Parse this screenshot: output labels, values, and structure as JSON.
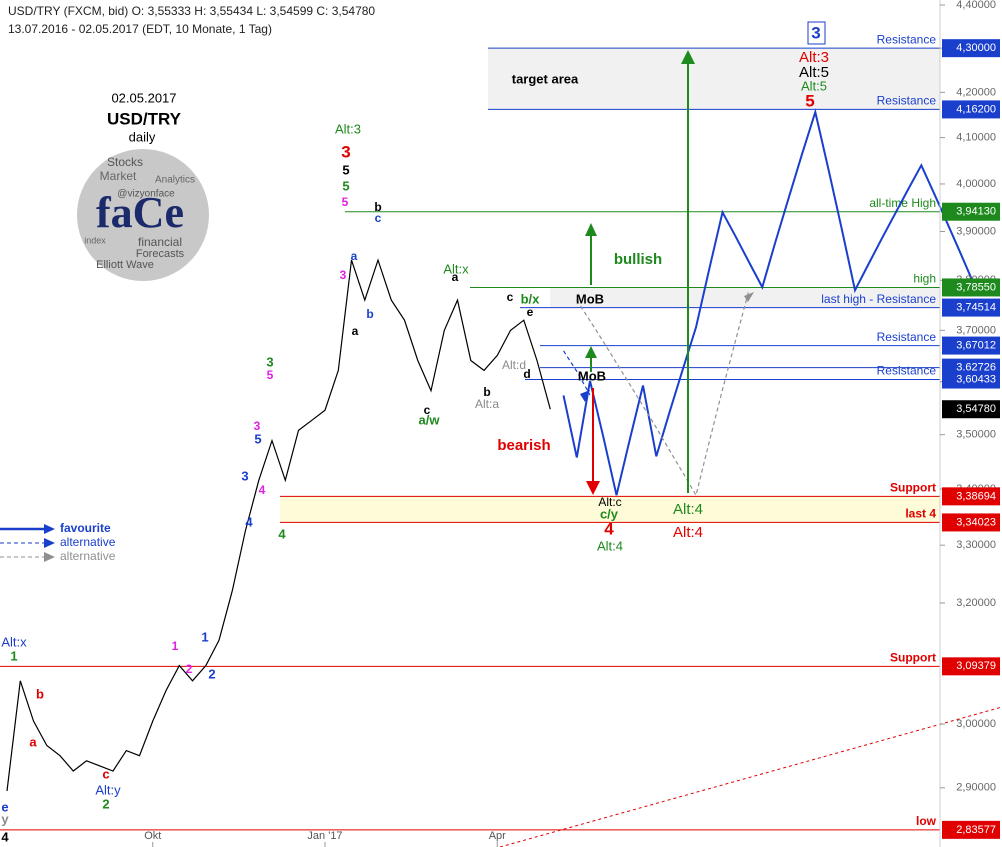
{
  "header": {
    "line1": "USD/TRY (FXCM, bid)  O: 3,55333  H: 3,55434  L: 3,54599  C: 3,54780",
    "line2": "13.07.2016 - 02.05.2017  (EDT, 10 Monate, 1 Tag)"
  },
  "logo": {
    "date": "02.05.2017",
    "symbol": "USD/TRY",
    "period": "daily",
    "brand": "faCe",
    "words": [
      "Stocks",
      "Market",
      "financial",
      "Forecasts",
      "Elliott Wave",
      "@vizyonface",
      "index",
      "Analytics"
    ]
  },
  "chart_data": {
    "type": "line",
    "log_scale": true,
    "categories": [
      null,
      null,
      null,
      null,
      null,
      null,
      null,
      null,
      null,
      null,
      null,
      "Okt",
      null,
      null,
      null,
      null,
      null,
      null,
      null,
      null,
      null,
      null,
      null,
      null,
      "Jan '17",
      null,
      null,
      null,
      null,
      null,
      null,
      null,
      null,
      null,
      null,
      null,
      null,
      "Apr",
      null,
      null,
      null,
      null,
      null,
      null,
      null,
      null,
      null,
      null,
      null,
      null,
      null,
      null,
      null,
      null,
      null,
      null,
      null,
      null,
      null,
      null,
      null,
      null,
      null,
      null,
      null,
      null,
      null,
      null,
      null,
      null,
      null,
      null,
      null,
      null
    ],
    "ylim": [
      2.81,
      4.4
    ],
    "yticks": [
      {
        "value": 4.4,
        "label": "4,40000"
      },
      {
        "value": 4.3,
        "label": "4,30000"
      },
      {
        "value": 4.2,
        "label": "4,20000"
      },
      {
        "value": 4.1,
        "label": "4,10000"
      },
      {
        "value": 4.0,
        "label": "4,00000"
      },
      {
        "value": 3.9,
        "label": "3,90000"
      },
      {
        "value": 3.8,
        "label": "3,80000"
      },
      {
        "value": 3.7,
        "label": "3,70000"
      },
      {
        "value": 3.6,
        "label": "3,60000"
      },
      {
        "value": 3.5,
        "label": "3,50000"
      },
      {
        "value": 3.4,
        "label": "3,40000"
      },
      {
        "value": 3.3,
        "label": "3,30000"
      },
      {
        "value": 3.2,
        "label": "3,20000"
      },
      {
        "value": 3.0,
        "label": "3,00000"
      },
      {
        "value": 2.9,
        "label": "2,90000"
      }
    ],
    "series": [
      {
        "name": "USD/TRY",
        "color": "#000000",
        "dash": false,
        "values": [
          2.895,
          3.07,
          3.005,
          2.966,
          2.95,
          2.926,
          2.942,
          2.934,
          2.926,
          2.958,
          2.95,
          3.005,
          3.054,
          3.095,
          3.07,
          3.095,
          3.137,
          3.221,
          3.326,
          3.416,
          3.489,
          3.416,
          3.508,
          3.527,
          3.546,
          3.622,
          3.841,
          3.76,
          3.841,
          3.76,
          3.72,
          3.641,
          3.583,
          3.7,
          3.76,
          3.641,
          3.622,
          3.651,
          3.7,
          3.72,
          3.641,
          3.5478,
          null,
          null,
          null,
          null,
          null,
          null,
          null,
          null,
          null,
          null,
          null,
          null,
          null,
          null,
          null,
          null,
          null,
          null,
          null,
          null,
          null,
          null,
          null,
          null,
          null,
          null,
          null,
          null,
          null,
          null,
          null,
          null
        ]
      },
      {
        "name": "favourite",
        "color": "#1a3fcc",
        "dash": false,
        "values": [
          null,
          null,
          null,
          null,
          null,
          null,
          null,
          null,
          null,
          null,
          null,
          null,
          null,
          null,
          null,
          null,
          null,
          null,
          null,
          null,
          null,
          null,
          null,
          null,
          null,
          null,
          null,
          null,
          null,
          null,
          null,
          null,
          null,
          null,
          null,
          null,
          null,
          null,
          null,
          null,
          null,
          null,
          3.574,
          3.458,
          3.602,
          3.496,
          3.389,
          3.491,
          3.593,
          3.46,
          3.542,
          3.624,
          3.706,
          3.823,
          3.94,
          3.889,
          3.837,
          3.786,
          3.879,
          3.971,
          4.064,
          4.156,
          4.031,
          3.905,
          3.78,
          3.832,
          3.884,
          3.936,
          3.988,
          4.04,
          3.978,
          3.915,
          3.853,
          3.79
        ]
      },
      {
        "name": "alternative",
        "color": "#1a3fcc",
        "dash": true,
        "values": [
          null,
          null,
          null,
          null,
          null,
          null,
          null,
          null,
          null,
          null,
          null,
          null,
          null,
          null,
          null,
          null,
          null,
          null,
          null,
          null,
          null,
          null,
          null,
          null,
          null,
          null,
          null,
          null,
          null,
          null,
          null,
          null,
          null,
          null,
          null,
          null,
          null,
          null,
          null,
          null,
          null,
          null,
          3.66,
          3.62,
          3.575,
          null,
          null,
          null,
          null,
          null,
          null,
          null,
          null,
          null,
          null,
          null,
          null,
          null,
          null,
          null,
          null,
          null,
          null,
          null,
          null,
          null,
          null,
          null,
          null,
          null,
          null,
          null,
          null,
          null
        ]
      },
      {
        "name": "alternative",
        "color": "#909090",
        "dash": true,
        "values": [
          null,
          null,
          null,
          null,
          null,
          null,
          null,
          null,
          null,
          null,
          null,
          null,
          null,
          null,
          null,
          null,
          null,
          null,
          null,
          null,
          null,
          null,
          null,
          null,
          null,
          null,
          null,
          null,
          null,
          null,
          null,
          null,
          null,
          null,
          null,
          null,
          null,
          null,
          null,
          null,
          null,
          null,
          null,
          3.76,
          3.719,
          3.678,
          3.636,
          3.595,
          3.554,
          3.513,
          3.471,
          3.43,
          3.389,
          3.487,
          3.585,
          3.682,
          3.78,
          null,
          null,
          null,
          null,
          null,
          null,
          null,
          null,
          null,
          null,
          null,
          null,
          null,
          null,
          null,
          null,
          null
        ]
      }
    ],
    "levels": [
      {
        "value": 4.3,
        "label": "4,30000",
        "text": "Resistance",
        "color": "#1a3fcc"
      },
      {
        "value": 4.162,
        "label": "4,16200",
        "text": "Resistance",
        "color": "#1a3fcc"
      },
      {
        "value": 3.9413,
        "label": "3,94130",
        "text": "all-time High",
        "color": "#1e8a1e"
      },
      {
        "value": 3.7855,
        "label": "3,78550",
        "text": "high",
        "color": "#1e8a1e"
      },
      {
        "value": 3.74514,
        "label": "3,74514",
        "text": "last high - Resistance",
        "color": "#1a3fcc"
      },
      {
        "value": 3.67012,
        "label": "3,67012",
        "text": "Resistance",
        "color": "#1a3fcc"
      },
      {
        "value": 3.62726,
        "label": "3,62726",
        "color": "#1a3fcc"
      },
      {
        "value": 3.60433,
        "label": "3,60433",
        "text": "Resistance",
        "color": "#1a3fcc"
      },
      {
        "value": 3.5478,
        "label": "3,54780",
        "color": "#000000"
      },
      {
        "value": 3.38694,
        "label": "3,38694",
        "text": "Support",
        "color": "#e00000"
      },
      {
        "value": 3.34023,
        "label": "3,34023",
        "text": "last 4",
        "color": "#e00000"
      },
      {
        "value": 3.09379,
        "label": "3,09379",
        "text": "Support",
        "color": "#e00000"
      },
      {
        "value": 2.83577,
        "label": "2,83577",
        "text": "low",
        "color": "#e00000"
      }
    ],
    "annotations": [
      "target area",
      "3",
      "Alt:3",
      "Alt:5",
      "Alt:5",
      "5",
      "Alt:3",
      "3",
      "5",
      "5",
      "5",
      "b",
      "c",
      "Alt:x",
      "bullish",
      "b/x",
      "MoB",
      "MoB",
      "Alt:d",
      "bearish",
      "a/w",
      "Alt:a",
      "Alt:c",
      "c/y",
      "4",
      "Alt:4",
      "Alt:4",
      "Alt:4",
      "4",
      "3",
      "5",
      "Alt:x",
      "1",
      "b",
      "a",
      "c",
      "Alt:y",
      "2",
      "1",
      "1",
      "2",
      "2",
      "3",
      "4",
      "3",
      "5",
      "4",
      "e",
      "y",
      "4",
      "a",
      "b",
      "a",
      "3",
      "a",
      "c",
      "b",
      "c",
      "d",
      "e"
    ]
  }
}
